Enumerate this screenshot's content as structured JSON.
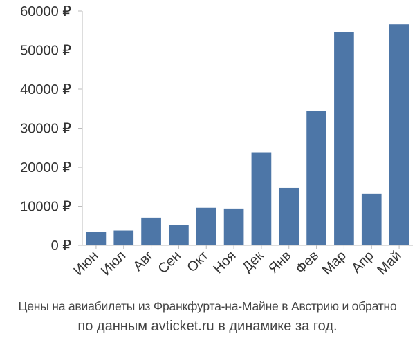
{
  "chart_data": {
    "type": "bar",
    "categories": [
      "Июн",
      "Июл",
      "Авг",
      "Сен",
      "Окт",
      "Ноя",
      "Дек",
      "Янв",
      "Фев",
      "Мар",
      "Апр",
      "Май"
    ],
    "values": [
      3400,
      3800,
      7100,
      5200,
      9600,
      9400,
      23800,
      14700,
      34500,
      54600,
      13300,
      56600
    ],
    "ylim": [
      0,
      60000
    ],
    "yticks": [
      0,
      10000,
      20000,
      30000,
      40000,
      50000,
      60000
    ],
    "ytick_labels": [
      "0 ₽",
      "10000 ₽",
      "20000 ₽",
      "30000 ₽",
      "40000 ₽",
      "50000 ₽",
      "60000 ₽"
    ],
    "grid": false,
    "bar_color": "#4d76a7",
    "axis_color": "#bbbbbb"
  },
  "caption": {
    "line1": "Цены на авиабилеты из Франкфурта-на-Майне в Австрию и обратно",
    "line2": "по данным avticket.ru в динамике за год."
  }
}
